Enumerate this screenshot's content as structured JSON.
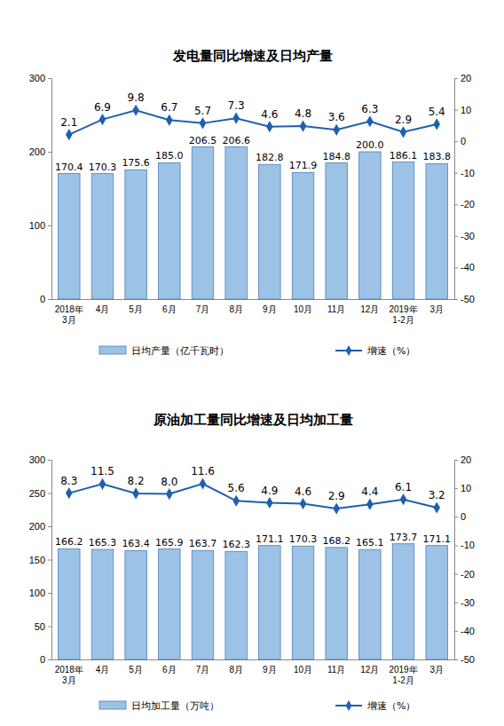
{
  "chart_data": [
    {
      "type": "bar",
      "title": "发电量同比增速及日均产量",
      "categories": [
        "2018年\n3月",
        "4月",
        "5月",
        "6月",
        "7月",
        "8月",
        "9月",
        "10月",
        "11月",
        "12月",
        "2019年\n1-2月",
        "3月"
      ],
      "series": [
        {
          "name": "日均产量（亿千瓦时）",
          "type": "bar",
          "color": "#9cc3e6",
          "values": [
            170.4,
            170.3,
            175.6,
            185.0,
            206.5,
            206.6,
            182.8,
            171.9,
            184.8,
            200.0,
            186.1,
            183.8
          ],
          "value_labels": [
            "170.4",
            "170.3",
            "175.6",
            "185.0",
            "206.5",
            "206.6",
            "182.8",
            "171.9",
            "184.8",
            "200.0",
            "186.1",
            "183.8"
          ]
        },
        {
          "name": "增速（%）",
          "type": "line",
          "axis": "y2",
          "color": "#1f5fae",
          "marker": "diamond",
          "values": [
            2.1,
            6.9,
            9.8,
            6.7,
            5.7,
            7.3,
            4.6,
            4.8,
            3.6,
            6.3,
            2.9,
            5.4
          ]
        }
      ],
      "ylim": [
        0,
        300
      ],
      "yticks": [
        0,
        100,
        200,
        300
      ],
      "y2lim": [
        -50,
        20
      ],
      "y2ticks": [
        -50,
        -40,
        -30,
        -20,
        -10,
        0,
        10,
        20
      ],
      "data_labels": true,
      "legend": "bottom"
    },
    {
      "type": "bar",
      "title": "原油加工量同比增速及日均加工量",
      "categories": [
        "2018年\n3月",
        "4月",
        "5月",
        "6月",
        "7月",
        "8月",
        "9月",
        "10月",
        "11月",
        "12月",
        "2019年\n1-2月",
        "3月"
      ],
      "series": [
        {
          "name": "日均加工量（万吨）",
          "type": "bar",
          "color": "#9cc3e6",
          "values": [
            166.2,
            165.3,
            163.4,
            165.9,
            163.7,
            162.3,
            171.1,
            170.3,
            168.2,
            165.1,
            173.7,
            171.1
          ]
        },
        {
          "name": "增速（%）",
          "type": "line",
          "axis": "y2",
          "color": "#1f5fae",
          "marker": "diamond",
          "values": [
            8.3,
            11.5,
            8.2,
            8.0,
            11.6,
            5.6,
            4.9,
            4.6,
            2.9,
            4.4,
            6.1,
            3.2
          ],
          "value_labels": [
            "8.3",
            "11.5",
            "8.2",
            "8.0",
            "11.6",
            "5.6",
            "4.9",
            "4.6",
            "2.9",
            "4.4",
            "6.1",
            "3.2"
          ]
        }
      ],
      "ylim": [
        0,
        300
      ],
      "yticks": [
        0,
        50,
        100,
        150,
        200,
        250,
        300
      ],
      "y2lim": [
        -50,
        20
      ],
      "y2ticks": [
        -50,
        -40,
        -30,
        -20,
        -10,
        0,
        10,
        20
      ],
      "data_labels": true,
      "legend": "bottom"
    }
  ]
}
